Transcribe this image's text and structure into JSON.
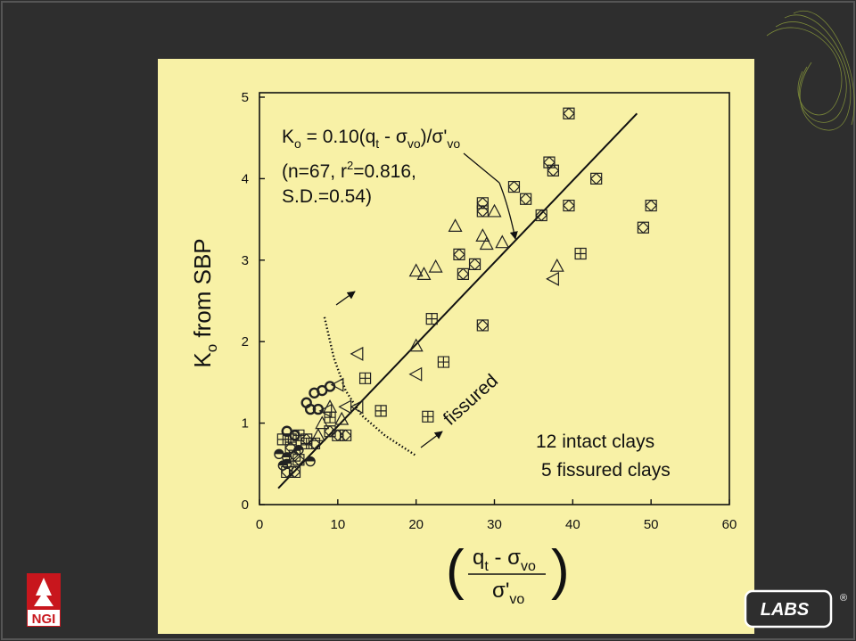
{
  "slide": {
    "logo_text": "NGI",
    "brand_text": "LABS",
    "brand_mark": "®"
  },
  "chart_data": {
    "type": "scatter",
    "background": "#f8f1a6",
    "xlim": [
      0,
      60
    ],
    "ylim": [
      0,
      5
    ],
    "xticks": [
      0,
      10,
      20,
      30,
      40,
      50,
      60
    ],
    "yticks": [
      0,
      1,
      2,
      3,
      4,
      5
    ],
    "y_label": [
      "K",
      "o",
      " from SBP"
    ],
    "x_label": {
      "numerator": [
        "q",
        "t",
        " - σ",
        "vo"
      ],
      "denominator": [
        "σ'",
        "vo"
      ]
    },
    "equation": [
      "K",
      "o",
      " = 0.10(q",
      "t",
      " - σ",
      "vo",
      ")/σ'",
      "vo"
    ],
    "stats": [
      "(n=67, r",
      "2",
      "=0.816,",
      "S.D.=0.54)"
    ],
    "annotations": [
      "fissured",
      "12 intact clays",
      "5 fissured clays"
    ],
    "fit_line": {
      "x": [
        2.4,
        48.2
      ],
      "y": [
        0.2,
        4.8
      ]
    },
    "boundary": {
      "x": [
        8.3,
        9.5,
        11,
        13,
        16,
        20
      ],
      "y": [
        2.3,
        1.8,
        1.4,
        1.1,
        0.85,
        0.6
      ]
    },
    "series": [
      {
        "marker": "diamond-square",
        "color": "#222222",
        "x": [
          39.5,
          37,
          37.5,
          43,
          32.5,
          34,
          28.5,
          28.5,
          39.5,
          50,
          36,
          49,
          25.5,
          27.5,
          26,
          28.5,
          10,
          11,
          4,
          4.5,
          5,
          3.5,
          4.5,
          7,
          6,
          9
        ],
        "y": [
          4.8,
          4.2,
          4.1,
          4.0,
          3.9,
          3.75,
          3.7,
          3.6,
          3.67,
          3.67,
          3.55,
          3.4,
          3.07,
          2.95,
          2.83,
          2.2,
          0.85,
          0.85,
          0.7,
          0.6,
          0.55,
          0.4,
          0.4,
          0.75,
          0.8,
          0.9
        ]
      },
      {
        "marker": "triangle-up",
        "color": "#222222",
        "x": [
          25,
          29,
          31,
          28.5,
          20,
          21,
          22.5,
          30,
          38,
          20,
          9,
          10.5,
          8,
          7.5
        ],
        "y": [
          3.42,
          3.2,
          3.22,
          3.3,
          2.87,
          2.83,
          2.92,
          3.6,
          2.93,
          1.95,
          1.2,
          1.05,
          1.0,
          0.85
        ]
      },
      {
        "marker": "triangle-left",
        "color": "#222222",
        "x": [
          37.5,
          20,
          12.5,
          10,
          11,
          12.5,
          8.5
        ],
        "y": [
          2.77,
          1.6,
          1.85,
          1.47,
          1.2,
          1.2,
          1.15
        ]
      },
      {
        "marker": "square-plus",
        "color": "#222222",
        "x": [
          41,
          22,
          23.5,
          13.5,
          15.5,
          21.5,
          9,
          5,
          6,
          4,
          3
        ],
        "y": [
          3.08,
          2.28,
          1.75,
          1.55,
          1.15,
          1.08,
          1.07,
          0.85,
          0.75,
          0.8,
          0.8
        ]
      },
      {
        "marker": "circle-open",
        "color": "#222222",
        "x": [
          9,
          8,
          7,
          6,
          7.5,
          6.5,
          4.5,
          3.5
        ],
        "y": [
          1.45,
          1.4,
          1.37,
          1.25,
          1.17,
          1.17,
          0.85,
          0.9
        ]
      },
      {
        "marker": "circle-half",
        "color": "#222222",
        "x": [
          2.5,
          3.5,
          3,
          6.5,
          5,
          3.5
        ],
        "y": [
          0.62,
          0.58,
          0.48,
          0.53,
          0.67,
          0.5
        ]
      }
    ]
  }
}
